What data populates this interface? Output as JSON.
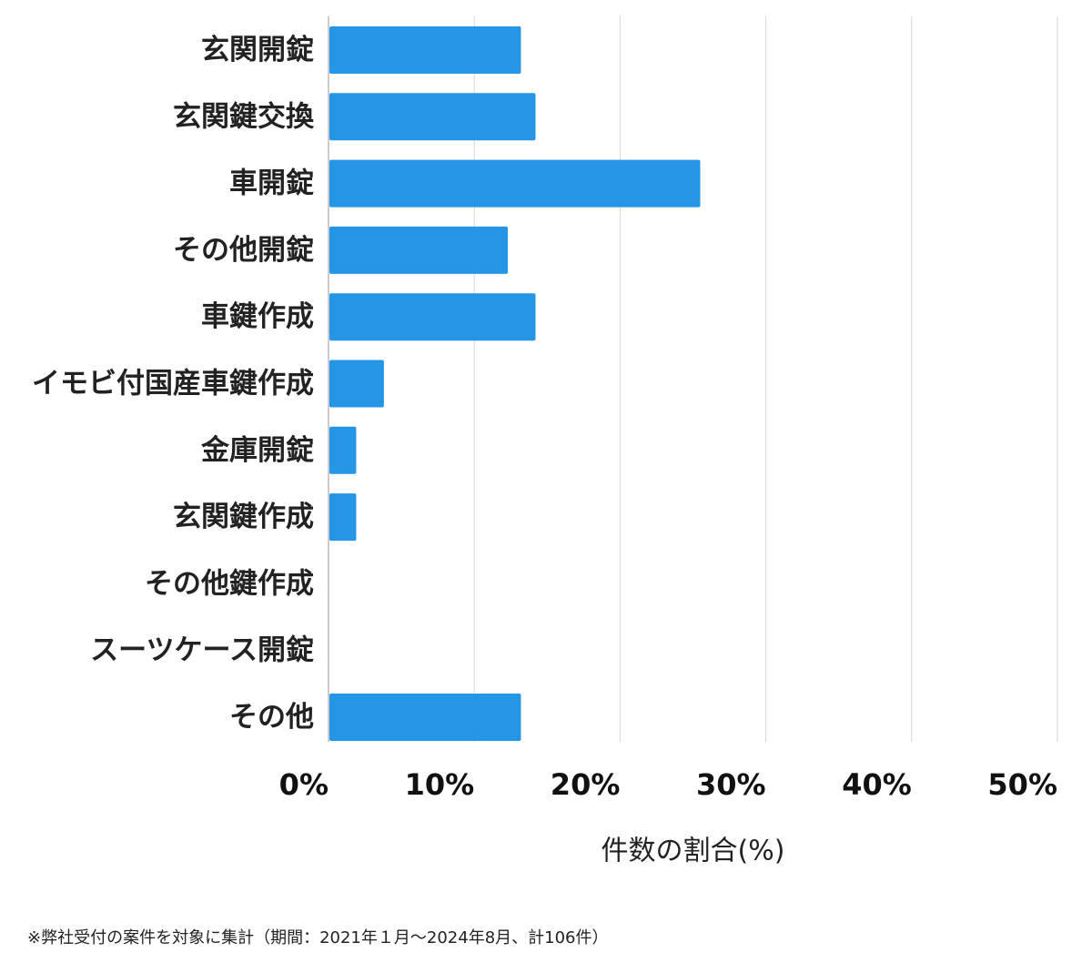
{
  "chart_data": {
    "type": "bar",
    "orientation": "horizontal",
    "categories": [
      "玄関開錠",
      "玄関鍵交換",
      "車開錠",
      "その他開錠",
      "車鍵作成",
      "イモビ付国産車鍵作成",
      "金庫開錠",
      "玄関鍵作成",
      "その他鍵作成",
      "スーツケース開錠",
      "その他"
    ],
    "values": [
      13.2,
      14.2,
      25.5,
      12.3,
      14.2,
      3.8,
      1.9,
      1.9,
      0,
      0,
      13.2
    ],
    "xlabel": "件数の割合(%)",
    "ylabel": "",
    "xlim": [
      0,
      50
    ],
    "xticks": [
      "0%",
      "10%",
      "20%",
      "30%",
      "40%",
      "50%"
    ],
    "grid": true,
    "bar_color": "#2595e6",
    "grid_color": "#d6d6d6"
  },
  "footnote": "※弊社受付の案件を対象に集計（期間：2021年１月〜2024年8月、計106件）"
}
